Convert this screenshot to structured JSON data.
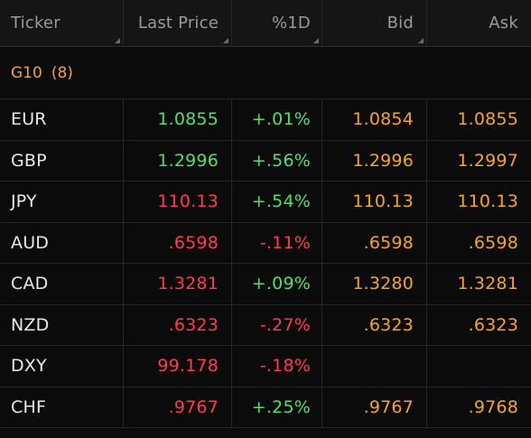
{
  "columns": {
    "ticker": "Ticker",
    "last": "Last Price",
    "pct": "%1D",
    "bid": "Bid",
    "ask": "Ask"
  },
  "group": {
    "name": "G10",
    "count": "(8)"
  },
  "rows": [
    {
      "ticker": "EUR",
      "last": "1.0855",
      "last_dir": "up",
      "pct": "+.01%",
      "pct_dir": "up",
      "bid": "1.0854",
      "ask": "1.0855"
    },
    {
      "ticker": "GBP",
      "last": "1.2996",
      "last_dir": "up",
      "pct": "+.56%",
      "pct_dir": "up",
      "bid": "1.2996",
      "ask": "1.2997"
    },
    {
      "ticker": "JPY",
      "last": "110.13",
      "last_dir": "down",
      "pct": "+.54%",
      "pct_dir": "up",
      "bid": "110.13",
      "ask": "110.13"
    },
    {
      "ticker": "AUD",
      "last": ".6598",
      "last_dir": "down",
      "pct": "-.11%",
      "pct_dir": "down",
      "bid": ".6598",
      "ask": ".6598"
    },
    {
      "ticker": "CAD",
      "last": "1.3281",
      "last_dir": "down",
      "pct": "+.09%",
      "pct_dir": "up",
      "bid": "1.3280",
      "ask": "1.3281"
    },
    {
      "ticker": "NZD",
      "last": ".6323",
      "last_dir": "down",
      "pct": "-.27%",
      "pct_dir": "down",
      "bid": ".6323",
      "ask": ".6323"
    },
    {
      "ticker": "DXY",
      "last": "99.178",
      "last_dir": "down",
      "pct": "-.18%",
      "pct_dir": "down",
      "bid": "",
      "ask": ""
    },
    {
      "ticker": "CHF",
      "last": ".9767",
      "last_dir": "down",
      "pct": "+.25%",
      "pct_dir": "up",
      "bid": ".9767",
      "ask": ".9768"
    }
  ],
  "colors": {
    "up": "#50e06a",
    "down": "#ff3b4f",
    "quote": "#f5a623",
    "group": "#f0a33a",
    "background": "#0b0b0b"
  }
}
